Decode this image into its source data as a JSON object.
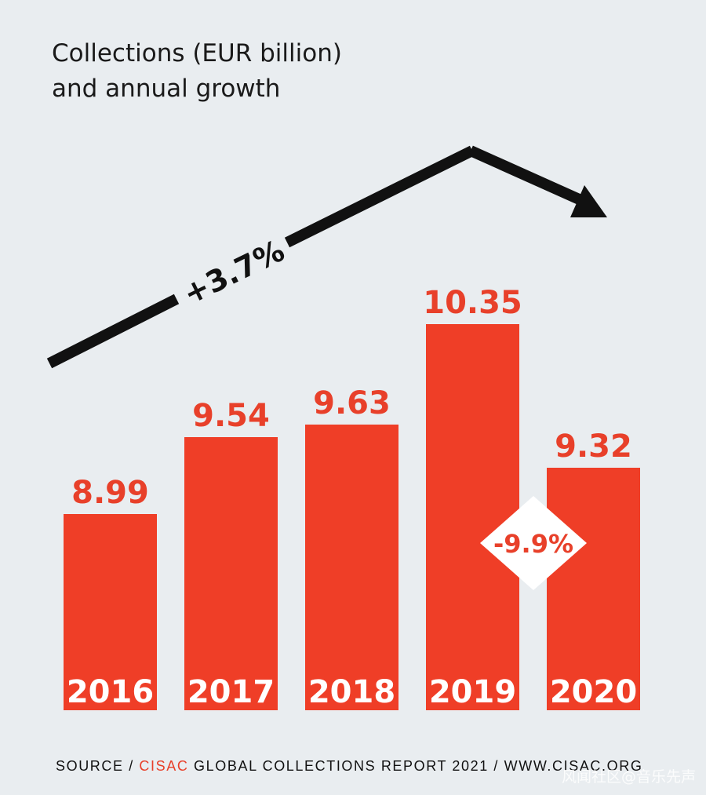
{
  "chart_data": {
    "type": "bar",
    "title_lines": [
      "Collections (EUR billion)",
      "and annual growth"
    ],
    "categories": [
      "2016",
      "2017",
      "2018",
      "2019",
      "2020"
    ],
    "values": [
      8.99,
      9.54,
      9.63,
      10.35,
      9.32
    ],
    "value_labels": [
      "8.99",
      "9.54",
      "9.63",
      "10.35",
      "9.32"
    ],
    "annotations": {
      "growth": "+3.7%",
      "decline": "-9.9%"
    },
    "colors": {
      "bar": "#ef3e27",
      "arrow": "#111111",
      "background": "#e9edf0"
    }
  },
  "source": {
    "prefix": "SOURCE / ",
    "brand": "CISAC",
    "suffix": " GLOBAL COLLECTIONS REPORT 2021 / WWW.CISAC.ORG"
  },
  "watermark": "风闻社区@音乐先声"
}
